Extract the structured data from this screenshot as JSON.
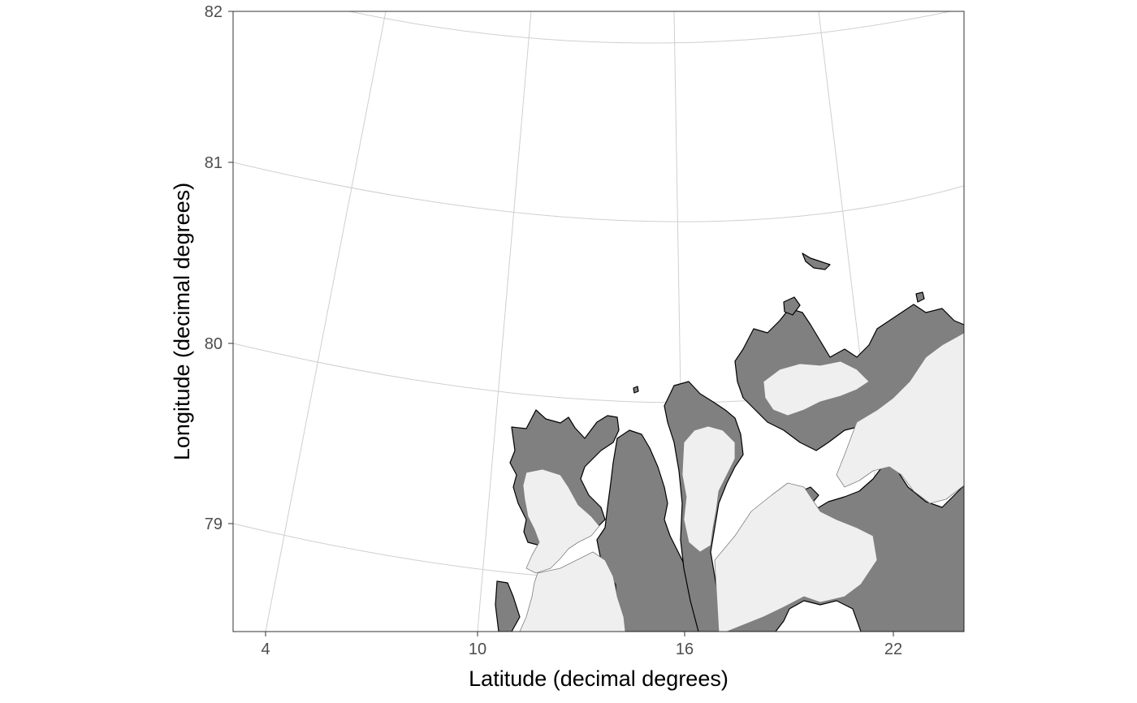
{
  "chart_data": {
    "type": "map",
    "xlabel": "Latitude (decimal degrees)",
    "ylabel": "Longitude (decimal degrees)",
    "x_ticks": [
      "4",
      "10",
      "16",
      "22"
    ],
    "y_ticks": [
      "79",
      "80",
      "81",
      "82"
    ],
    "x_tick_values": [
      4,
      10,
      16,
      22
    ],
    "y_tick_values": [
      79,
      80,
      81,
      82
    ],
    "panel_background": "white",
    "grid": true,
    "colors": {
      "land": "#808080",
      "glacier": "#efefef",
      "coastline": "#000000",
      "graticule": "#cfcfcf",
      "border": "#333333"
    }
  }
}
